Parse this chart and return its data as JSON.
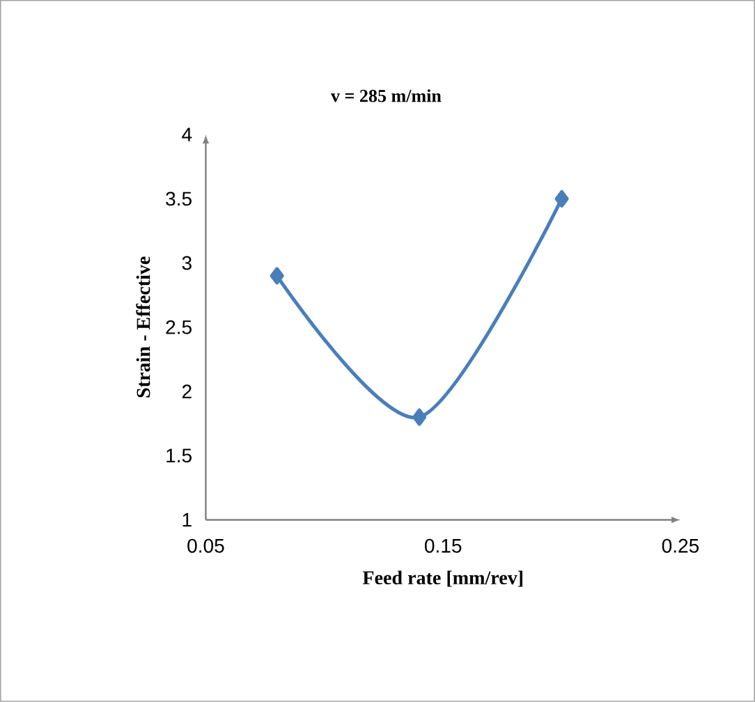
{
  "chart_data": {
    "type": "line",
    "title": "v = 285 m/min",
    "xlabel": "Feed rate [mm/rev]",
    "ylabel": "Strain - Effective",
    "x": [
      0.08,
      0.14,
      0.2
    ],
    "series": [
      {
        "color": "#4a7ebb",
        "values": [
          2.9,
          1.8,
          3.5
        ]
      }
    ],
    "xlim": [
      0.05,
      0.25
    ],
    "xticks": [
      0.05,
      0.15,
      0.25
    ],
    "ylim": [
      1,
      4
    ],
    "yticks": [
      1,
      1.5,
      2,
      2.5,
      3,
      3.5,
      4
    ],
    "grid": false,
    "marker": "diamond",
    "line_style": "solid"
  }
}
